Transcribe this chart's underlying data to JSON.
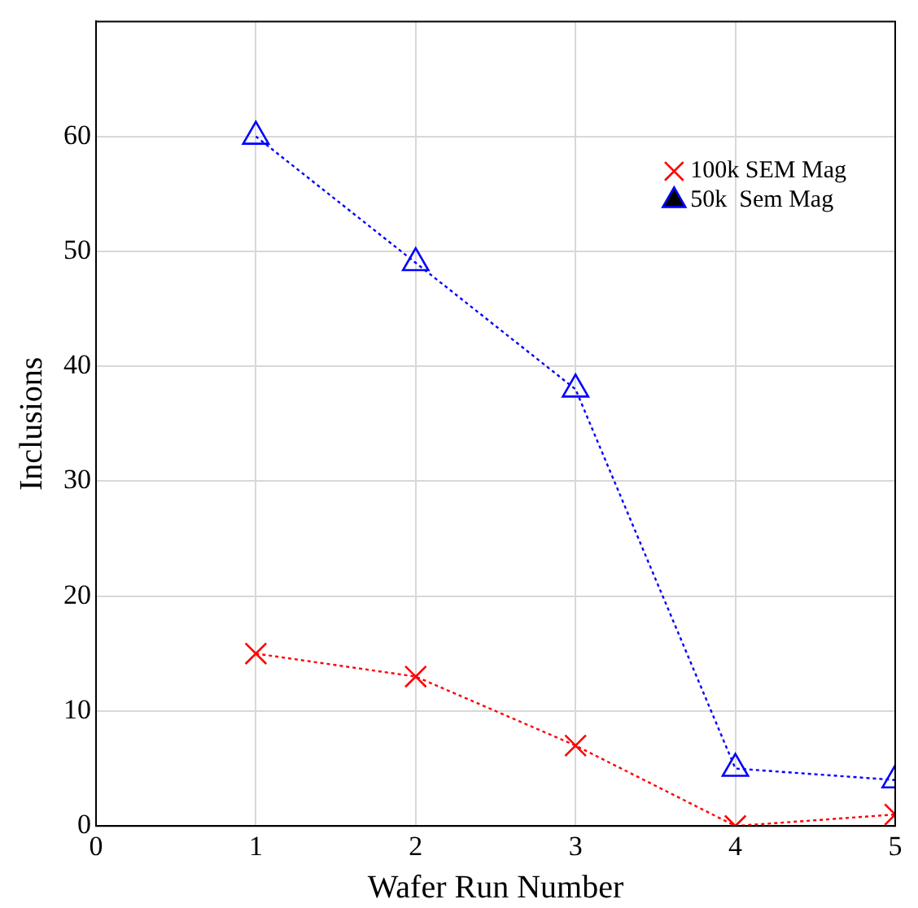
{
  "chart_data": {
    "type": "line",
    "xlabel": "Wafer Run Number",
    "ylabel": "Inclusions",
    "x": [
      1,
      2,
      3,
      4,
      5
    ],
    "series": [
      {
        "name": "100k SEM Mag",
        "color": "#ff0000",
        "marker": "cross",
        "values": [
          15,
          13,
          7,
          0,
          1
        ]
      },
      {
        "name": "50k  Sem Mag",
        "color": "#0000ff",
        "marker": "triangle",
        "values": [
          60,
          49,
          38,
          5,
          4
        ]
      }
    ],
    "xlim": [
      0,
      5
    ],
    "xticks": [
      0,
      1,
      2,
      3,
      4,
      5
    ],
    "ylim": [
      0,
      70
    ],
    "yticks": [
      0,
      10,
      20,
      30,
      40,
      50,
      60
    ],
    "grid": true,
    "legend": "top right",
    "line_style": "dotted"
  }
}
